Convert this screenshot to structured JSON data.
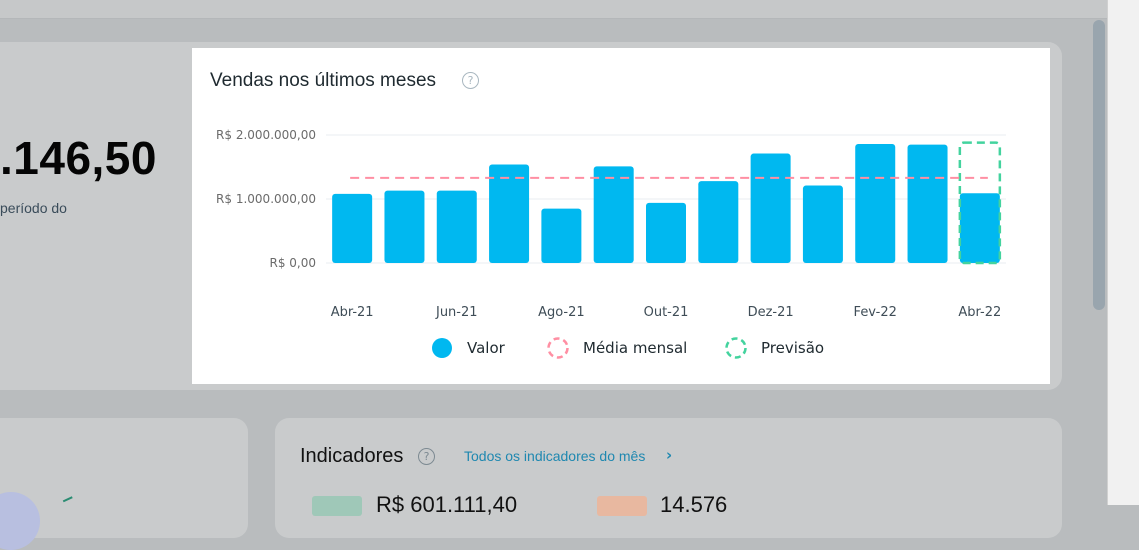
{
  "summary": {
    "value_partial": ".146,50",
    "period_partial": "período do"
  },
  "sales_chart": {
    "title": "Vendas nos últimos meses",
    "help_icon": "question-circle-icon",
    "legend": [
      {
        "label": "Valor",
        "style": "solid",
        "color": "#00b8f0"
      },
      {
        "label": "Média mensal",
        "style": "dashed",
        "color": "#ff8fa3"
      },
      {
        "label": "Previsão",
        "style": "dashed",
        "color": "#43d39e"
      }
    ]
  },
  "chart_data": {
    "type": "bar",
    "title": "Vendas nos últimos meses",
    "categories": [
      "Abr-21",
      "Mai-21",
      "Jun-21",
      "Jul-21",
      "Ago-21",
      "Set-21",
      "Out-21",
      "Nov-21",
      "Dez-21",
      "Jan-22",
      "Fev-22",
      "Mar-22",
      "Abr-22"
    ],
    "x_tick_labels": [
      "Abr-21",
      "Jun-21",
      "Ago-21",
      "Out-21",
      "Dez-21",
      "Fev-22",
      "Abr-22"
    ],
    "y_tick_labels": [
      "R$ 0,00",
      "R$ 1.000.000,00",
      "R$ 2.000.000,00"
    ],
    "ylim": [
      0,
      2000000
    ],
    "grid": true,
    "legend_position": "bottom",
    "series": [
      {
        "name": "Valor",
        "color": "#00b8f0",
        "values": [
          1080000,
          1130000,
          1130000,
          1540000,
          850000,
          1510000,
          940000,
          1280000,
          1710000,
          1210000,
          1860000,
          1850000,
          1090000
        ]
      },
      {
        "name": "Média mensal",
        "color": "#ff8fa3",
        "style": "dashed-line",
        "value": 1330000
      },
      {
        "name": "Previsão",
        "color": "#43d39e",
        "style": "dashed-bar",
        "category": "Abr-22",
        "value": 1880000
      }
    ]
  },
  "indicators": {
    "title": "Indicadores",
    "link_text": "Todos os indicadores do mês",
    "link_icon": "chevron-right-icon",
    "items": [
      {
        "value": "R$ 601.111,40",
        "color": "#9fc8b8"
      },
      {
        "value": "14.576",
        "color": "#e8b8a0"
      }
    ]
  }
}
